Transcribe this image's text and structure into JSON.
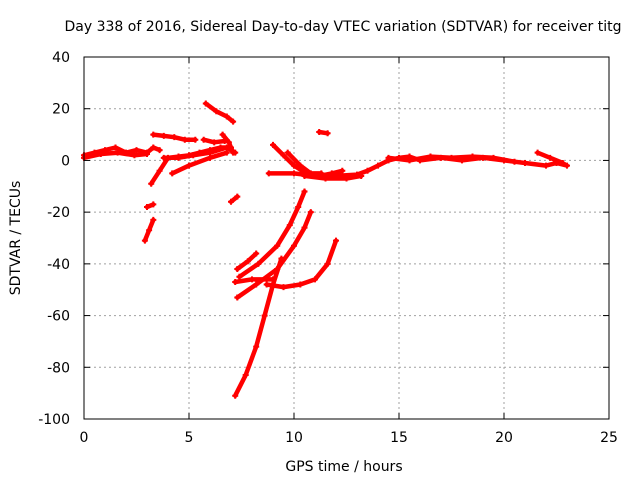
{
  "chart_data": {
    "type": "scatter",
    "title": "Day 338 of 2016, Sidereal Day-to-day VTEC variation (SDTVAR) for receiver titg",
    "xlabel": "GPS time / hours",
    "ylabel": "SDTVAR / TECUs",
    "xlim": [
      0,
      25
    ],
    "ylim": [
      -100,
      40
    ],
    "xticks": [
      "0",
      "5",
      "10",
      "15",
      "20",
      "25"
    ],
    "yticks": [
      "40",
      "20",
      "0",
      "-20",
      "-40",
      "-60",
      "-80",
      "-100"
    ],
    "grid": true,
    "color": "#ff0000",
    "series": [
      {
        "points": [
          [
            0,
            2
          ],
          [
            0.5,
            3
          ],
          [
            1,
            4
          ],
          [
            1.5,
            5
          ],
          [
            2,
            3
          ],
          [
            2.5,
            4
          ],
          [
            3,
            3
          ],
          [
            3.3,
            5
          ],
          [
            3.6,
            4
          ]
        ]
      },
      {
        "points": [
          [
            0,
            1
          ],
          [
            0.8,
            2.5
          ],
          [
            1.6,
            3
          ],
          [
            2.4,
            2
          ],
          [
            3,
            2.5
          ]
        ]
      },
      {
        "points": [
          [
            3.2,
            -9
          ],
          [
            3.6,
            -4
          ],
          [
            4,
            1
          ],
          [
            4.5,
            1.5
          ],
          [
            5,
            2
          ],
          [
            5.5,
            3
          ],
          [
            6,
            4
          ],
          [
            6.5,
            5
          ],
          [
            7,
            5
          ]
        ]
      },
      {
        "points": [
          [
            3.8,
            1
          ],
          [
            4.5,
            1
          ],
          [
            5.2,
            2
          ],
          [
            6,
            3
          ],
          [
            6.8,
            5
          ],
          [
            7.2,
            3
          ]
        ]
      },
      {
        "points": [
          [
            3.3,
            10
          ],
          [
            3.8,
            9.5
          ],
          [
            4.3,
            9
          ],
          [
            4.8,
            8
          ],
          [
            5.3,
            8
          ]
        ]
      },
      {
        "points": [
          [
            5.7,
            8
          ],
          [
            6.2,
            7
          ],
          [
            6.7,
            7.5
          ]
        ]
      },
      {
        "points": [
          [
            5.8,
            22
          ],
          [
            6.3,
            19
          ],
          [
            6.8,
            17
          ],
          [
            7.1,
            15
          ]
        ]
      },
      {
        "points": [
          [
            6.6,
            10
          ],
          [
            6.9,
            7
          ],
          [
            7.1,
            3
          ]
        ]
      },
      {
        "points": [
          [
            4.2,
            -5
          ],
          [
            5,
            -2
          ],
          [
            6,
            1
          ],
          [
            6.8,
            3
          ]
        ]
      },
      {
        "points": [
          [
            2.9,
            -31
          ],
          [
            3.1,
            -27
          ],
          [
            3.3,
            -23
          ]
        ]
      },
      {
        "points": [
          [
            3.0,
            -18
          ],
          [
            3.3,
            -17
          ]
        ]
      },
      {
        "points": [
          [
            7.0,
            -16
          ],
          [
            7.3,
            -14
          ]
        ]
      },
      {
        "points": [
          [
            9.0,
            6
          ],
          [
            9.5,
            2
          ],
          [
            10,
            -2
          ],
          [
            10.6,
            -5
          ],
          [
            11.2,
            -6
          ],
          [
            11.8,
            -5
          ],
          [
            12.3,
            -4
          ]
        ]
      },
      {
        "points": [
          [
            9.7,
            3
          ],
          [
            10.3,
            -2
          ],
          [
            10.8,
            -5
          ],
          [
            11.3,
            -5
          ]
        ]
      },
      {
        "points": [
          [
            8.8,
            -5
          ],
          [
            10,
            -5
          ],
          [
            11,
            -6
          ],
          [
            12,
            -6
          ],
          [
            13,
            -5.5
          ],
          [
            13.5,
            -4
          ],
          [
            14,
            -2
          ],
          [
            14.5,
            0
          ],
          [
            15,
            1
          ],
          [
            15.5,
            1.5
          ],
          [
            16,
            0
          ],
          [
            17,
            1
          ],
          [
            18,
            0
          ],
          [
            19,
            1
          ],
          [
            20,
            0
          ],
          [
            21,
            -1
          ],
          [
            22,
            -2
          ],
          [
            22.5,
            -1
          ],
          [
            23,
            -2
          ]
        ]
      },
      {
        "points": [
          [
            10.5,
            -6
          ],
          [
            11.5,
            -7
          ],
          [
            12.5,
            -7
          ],
          [
            13.2,
            -6
          ]
        ]
      },
      {
        "points": [
          [
            14.5,
            1
          ],
          [
            15.5,
            0
          ],
          [
            16.5,
            1.5
          ],
          [
            17.5,
            1
          ],
          [
            18.5,
            1.5
          ],
          [
            19.5,
            1
          ],
          [
            20.5,
            -0.5
          ]
        ]
      },
      {
        "points": [
          [
            21.6,
            3
          ],
          [
            22.2,
            1
          ],
          [
            22.8,
            -1
          ]
        ]
      },
      {
        "points": [
          [
            11.2,
            11
          ],
          [
            11.6,
            10.5
          ]
        ]
      },
      {
        "points": [
          [
            7.2,
            -91
          ],
          [
            7.7,
            -83
          ],
          [
            8.2,
            -72
          ],
          [
            8.6,
            -60
          ],
          [
            9.0,
            -48
          ],
          [
            9.4,
            -38
          ]
        ]
      },
      {
        "points": [
          [
            7.4,
            -45
          ],
          [
            8.3,
            -40
          ],
          [
            9.2,
            -33
          ],
          [
            9.8,
            -25
          ],
          [
            10.2,
            -18
          ],
          [
            10.5,
            -12
          ]
        ]
      },
      {
        "points": [
          [
            7.3,
            -53
          ],
          [
            8.2,
            -48
          ],
          [
            9.2,
            -42
          ],
          [
            10,
            -33
          ],
          [
            10.5,
            -26
          ],
          [
            10.8,
            -20
          ]
        ]
      },
      {
        "points": [
          [
            7.2,
            -47
          ],
          [
            8,
            -46
          ],
          [
            9,
            -46
          ]
        ]
      },
      {
        "points": [
          [
            8.7,
            -48
          ],
          [
            9.5,
            -49
          ],
          [
            10.3,
            -48
          ],
          [
            11,
            -46
          ],
          [
            11.6,
            -40
          ],
          [
            12,
            -31
          ]
        ]
      },
      {
        "points": [
          [
            7.3,
            -42
          ],
          [
            7.8,
            -39
          ],
          [
            8.2,
            -36
          ]
        ]
      }
    ]
  }
}
